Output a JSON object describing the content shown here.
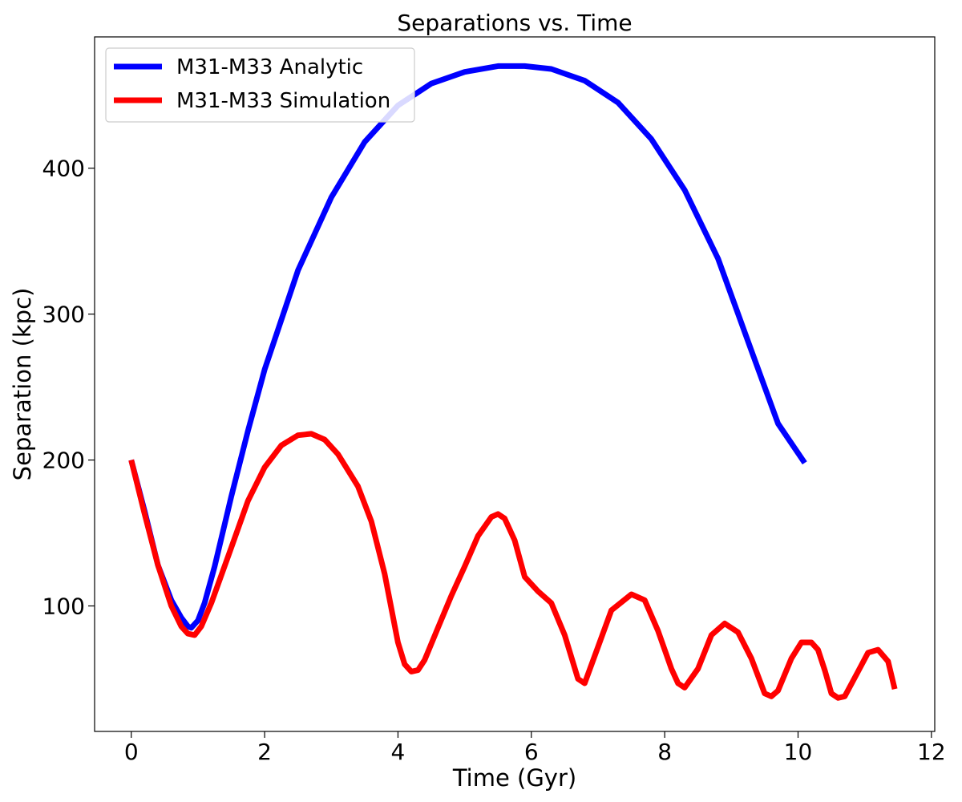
{
  "chart_data": {
    "type": "line",
    "title": "Separations vs. Time",
    "xlabel": "Time (Gyr)",
    "ylabel": "Separation (kpc)",
    "xlim": [
      -0.55,
      12.05
    ],
    "ylim": [
      14,
      490
    ],
    "xticks": [
      0,
      2,
      4,
      6,
      8,
      10,
      12
    ],
    "yticks": [
      100,
      200,
      300,
      400
    ],
    "grid": false,
    "legend_position": "top-left",
    "series": [
      {
        "name": "M31-M33 Analytic",
        "color": "#0000ff",
        "x": [
          0,
          0.2,
          0.4,
          0.6,
          0.75,
          0.85,
          0.9,
          1.0,
          1.1,
          1.25,
          1.5,
          1.75,
          2.0,
          2.5,
          3.0,
          3.5,
          4.0,
          4.5,
          5.0,
          5.5,
          5.9,
          6.3,
          6.8,
          7.3,
          7.8,
          8.3,
          8.8,
          9.3,
          9.7,
          10.1
        ],
        "y": [
          200,
          165,
          128,
          104,
          92,
          86,
          85,
          90,
          102,
          127,
          175,
          220,
          262,
          330,
          380,
          418,
          443,
          458,
          466,
          470,
          470,
          468,
          460,
          445,
          420,
          385,
          338,
          275,
          225,
          198
        ]
      },
      {
        "name": "M31-M33 Simulation",
        "color": "#ff0000",
        "x": [
          0,
          0.2,
          0.4,
          0.6,
          0.75,
          0.85,
          0.95,
          1.05,
          1.2,
          1.5,
          1.75,
          2.0,
          2.25,
          2.5,
          2.7,
          2.9,
          3.1,
          3.4,
          3.6,
          3.8,
          4.0,
          4.1,
          4.2,
          4.3,
          4.4,
          4.6,
          4.8,
          5.0,
          5.2,
          5.4,
          5.5,
          5.6,
          5.75,
          5.9,
          6.1,
          6.3,
          6.5,
          6.7,
          6.8,
          7.0,
          7.2,
          7.5,
          7.7,
          7.9,
          8.1,
          8.2,
          8.3,
          8.5,
          8.7,
          8.9,
          9.1,
          9.3,
          9.5,
          9.6,
          9.7,
          9.9,
          10.05,
          10.2,
          10.3,
          10.4,
          10.5,
          10.6,
          10.7,
          10.9,
          11.05,
          11.2,
          11.35,
          11.45
        ],
        "y": [
          200,
          163,
          128,
          100,
          86,
          81,
          80,
          86,
          102,
          140,
          172,
          195,
          210,
          217,
          218,
          214,
          204,
          182,
          158,
          122,
          75,
          60,
          55,
          56,
          63,
          85,
          107,
          127,
          148,
          161,
          163,
          160,
          145,
          120,
          110,
          102,
          80,
          50,
          47,
          72,
          97,
          108,
          104,
          83,
          57,
          47,
          44,
          57,
          80,
          88,
          82,
          64,
          40,
          38,
          42,
          64,
          75,
          75,
          70,
          56,
          40,
          37,
          38,
          55,
          68,
          70,
          62,
          43
        ]
      }
    ]
  }
}
